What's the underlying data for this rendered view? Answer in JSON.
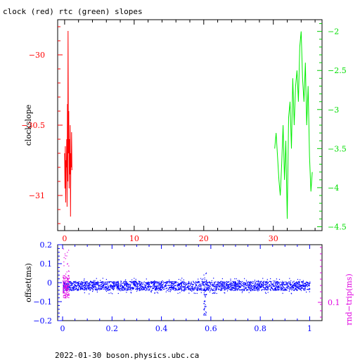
{
  "title": "clock (red) rtc (green) slopes",
  "footer": "2022-01-30  boson.physics.ubc.ca",
  "colors": {
    "clock": "#ff0000",
    "rtc": "#00ee00",
    "offset": "#0000ff",
    "rndtrip": "#e000e0",
    "axis": "#000000"
  },
  "chart_data": [
    {
      "type": "line",
      "ylabel": "clockslope",
      "xlim": [
        -1,
        37
      ],
      "xticks": [
        0,
        10,
        20,
        30
      ],
      "ylim_left": [
        -31.25,
        -29.75
      ],
      "yticks_left": [
        -30,
        -30.5,
        -31
      ],
      "ylim_right": [
        -4.55,
        -1.85
      ],
      "yticks_right": [
        -2,
        -2.5,
        -3,
        -3.5,
        -4,
        -4.5
      ],
      "series": [
        {
          "axis": "left",
          "x": [
            0.0,
            0.05,
            0.1,
            0.15,
            0.2,
            0.25,
            0.3,
            0.35,
            0.4,
            0.45,
            0.5,
            0.55,
            0.6,
            0.65,
            0.7,
            0.75,
            0.8,
            0.85,
            0.9,
            0.95,
            1.0,
            1.05
          ],
          "y": [
            -30.7,
            -30.95,
            -30.65,
            -31.05,
            -30.75,
            -30.8,
            -30.6,
            -31.08,
            -30.35,
            -30.9,
            -29.83,
            -30.7,
            -30.4,
            -30.95,
            -30.6,
            -30.85,
            -30.5,
            -31.15,
            -30.7,
            -30.8,
            -30.55,
            -30.82
          ]
        },
        {
          "axis": "right",
          "x": [
            30.2,
            30.4,
            30.6,
            30.8,
            31.0,
            31.2,
            31.4,
            31.6,
            31.8,
            32.0,
            32.2,
            32.4,
            32.6,
            32.8,
            33.0,
            33.2,
            33.4,
            33.6,
            33.8,
            34.0,
            34.2,
            34.4,
            34.6,
            34.8,
            35.0,
            35.2,
            35.4,
            35.6
          ],
          "y": [
            -3.5,
            -3.3,
            -3.6,
            -3.9,
            -4.1,
            -3.7,
            -3.2,
            -3.9,
            -3.4,
            -4.4,
            -3.1,
            -2.9,
            -3.5,
            -2.6,
            -3.2,
            -2.7,
            -2.5,
            -2.9,
            -2.2,
            -2.0,
            -2.6,
            -2.9,
            -2.4,
            -3.2,
            -2.7,
            -3.6,
            -4.05,
            -3.8
          ]
        }
      ]
    },
    {
      "type": "scatter",
      "ylabel_left": "offset(ms)",
      "ylabel_right": "rnd−trip(ms)",
      "xlim": [
        -0.02,
        1.05
      ],
      "xticks": [
        0,
        0.2,
        0.4,
        0.6,
        0.8,
        1
      ],
      "ylim_left": [
        -0.2,
        0.2
      ],
      "yticks_left": [
        0.2,
        0.1,
        0,
        -0.1,
        -0.2
      ],
      "yticks_right": [
        0.1
      ],
      "offset_band": {
        "x_range": [
          0.0,
          1.0
        ],
        "center": -0.015,
        "half_width": 0.03
      },
      "spike": {
        "x": 0.575,
        "min": -0.17,
        "max": 0.06
      },
      "rndtrip_burst": {
        "x_range": [
          0.0,
          0.025
        ],
        "min": -0.11,
        "max": 0.18
      }
    }
  ]
}
